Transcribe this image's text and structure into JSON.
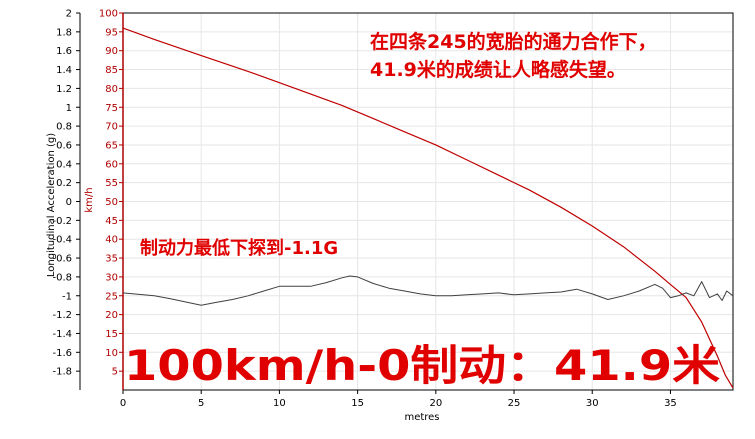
{
  "chart_data": {
    "type": "line",
    "xlabel": "metres",
    "ylabel_left": "Longitudinal Acceleration (g)",
    "ylabel_right": "km/h",
    "xlim": [
      0,
      39
    ],
    "ylim_left": [
      -2,
      2
    ],
    "ylim_right": [
      0,
      100
    ],
    "x_ticks": [
      "0",
      "5",
      "10",
      "15",
      "20",
      "25",
      "30",
      "35"
    ],
    "y_ticks_left": [
      "2",
      "1.8",
      "1.6",
      "1.4",
      "1.2",
      "1",
      "0.8",
      "0.6",
      "0.4",
      "0.2",
      "0",
      "-0.2",
      "-0.4",
      "-0.6",
      "-0.8",
      "-1",
      "-1.2",
      "-1.4",
      "-1.6",
      "-1.8"
    ],
    "y_ticks_right": [
      "100",
      "95",
      "90",
      "85",
      "80",
      "75",
      "70",
      "65",
      "60",
      "55",
      "50",
      "45",
      "40",
      "35",
      "30",
      "25",
      "20",
      "15",
      "10",
      "5"
    ],
    "grid": true,
    "series": [
      {
        "axis": "right",
        "color": "#c00000",
        "x": [
          0,
          2,
          5,
          8,
          10,
          12,
          14,
          16,
          18,
          20,
          22,
          24,
          26,
          28,
          30,
          32,
          34,
          35,
          36,
          37,
          38,
          38.5,
          39
        ],
        "y": [
          96,
          93,
          88.7,
          84.5,
          81.5,
          78.5,
          75.5,
          72,
          68.5,
          65,
          61,
          57,
          53,
          48.5,
          43.5,
          38,
          31.5,
          28,
          24.5,
          18,
          9,
          4,
          0.5
        ]
      },
      {
        "axis": "left",
        "color": "#404040",
        "x": [
          0,
          2,
          3,
          5,
          6,
          7,
          8,
          9,
          10,
          11,
          12,
          13,
          14,
          14.5,
          15,
          16,
          17,
          18,
          19,
          20,
          21,
          22,
          23,
          24,
          25,
          26,
          27,
          28,
          29,
          30,
          31,
          32,
          33,
          34,
          34.5,
          35,
          35.5,
          36,
          36.5,
          37,
          37.5,
          38,
          38.3,
          38.6,
          39
        ],
        "y": [
          -0.97,
          -1.0,
          -1.03,
          -1.1,
          -1.07,
          -1.04,
          -1.0,
          -0.95,
          -0.9,
          -0.9,
          -0.9,
          -0.86,
          -0.81,
          -0.79,
          -0.8,
          -0.87,
          -0.92,
          -0.95,
          -0.98,
          -1.0,
          -1.0,
          -0.99,
          -0.98,
          -0.97,
          -0.99,
          -0.98,
          -0.97,
          -0.96,
          -0.93,
          -0.98,
          -1.04,
          -1.0,
          -0.95,
          -0.88,
          -0.92,
          -1.02,
          -1.0,
          -0.97,
          -1.0,
          -0.85,
          -1.02,
          -0.98,
          -1.05,
          -0.95,
          -1.0
        ]
      }
    ]
  },
  "annotations": {
    "top_right_line1": "在四条245的宽胎的通力合作下，",
    "top_right_line2": "41.9米的成绩让人略感失望。",
    "middle_left": "制动力最低下探到-1.1G",
    "bottom_big": "100km/h-0制动：41.9米"
  }
}
